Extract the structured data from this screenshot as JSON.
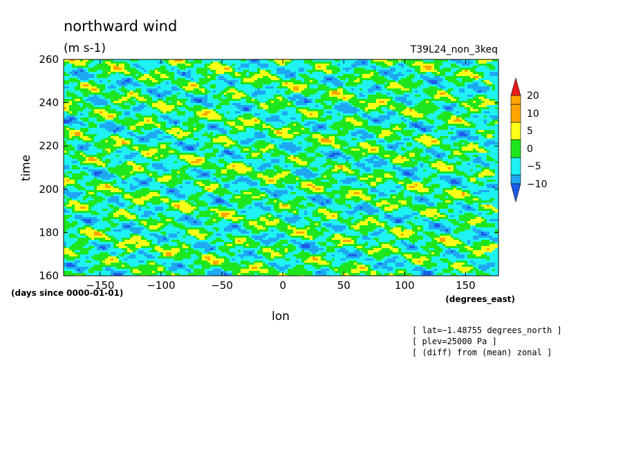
{
  "chart_data": {
    "type": "heatmap",
    "title": "northward wind",
    "units": "(m s-1)",
    "run_label": "T39L24_non_3keq",
    "xlabel": "lon",
    "xunit": "(degrees_east)",
    "ylabel": "time",
    "yunit": "(days since 0000-01-01)",
    "xlim": [
      -180,
      177
    ],
    "ylim": [
      160,
      260
    ],
    "x_ticks": [
      -150,
      -100,
      -50,
      0,
      50,
      100,
      150
    ],
    "x_tick_labels": [
      "−150",
      "−100",
      "−50",
      "0",
      "50",
      "100",
      "150"
    ],
    "y_ticks": [
      160,
      180,
      200,
      220,
      240,
      260
    ],
    "y_tick_labels": [
      "160",
      "180",
      "200",
      "220",
      "240",
      "260"
    ],
    "levels": [
      -10,
      -5,
      0,
      5,
      10,
      20
    ],
    "level_labels": [
      "−10",
      "−5",
      "0",
      "5",
      "10",
      "20"
    ],
    "colors": [
      "#1c5ae8",
      "#1ea8f2",
      "#1ef2f2",
      "#1ee61e",
      "#ffff1a",
      "#ffa500",
      "#e81c1c"
    ],
    "colorbar_extend": "both",
    "annotations": [
      "[ lat=−1.48755 degrees_north ]",
      "[ plev=25000 Pa ]",
      "[ (diff) from (mean) zonal ]"
    ]
  }
}
